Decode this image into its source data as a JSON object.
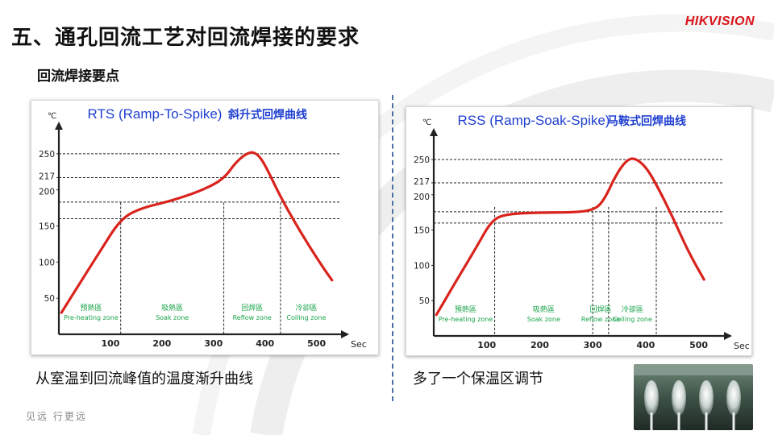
{
  "slide": {
    "title": "五、通孔回流工艺对回流焊接的要求",
    "subtitle": "回流焊接要点",
    "footer": "见远 行更远",
    "captions": {
      "left": "从室温到回流峰值的温度渐升曲线",
      "right": "多了一个保温区调节"
    }
  },
  "logo": {
    "hik": "HIK",
    "vision": "VISION"
  },
  "colors": {
    "curve": "#d9231d",
    "title_blue": "#1f3fd0",
    "zone_green": "#1aa34a",
    "brand": "#d9151b"
  },
  "chart_data": [
    {
      "type": "line",
      "title": "RTS (Ramp-To-Spike)",
      "title_cn": "斜升式回焊曲线",
      "ylabel": "℃",
      "xlabel": "Sec",
      "yticks": [
        "50",
        "100",
        "150",
        "200",
        "217",
        "250"
      ],
      "xticks": [
        "100",
        "200",
        "300",
        "400",
        "500"
      ],
      "xlim": [
        0,
        560
      ],
      "ylim": [
        0,
        290
      ],
      "reference_lines_y": [
        250,
        217,
        183,
        160
      ],
      "zone_dividers_x": [
        120,
        320,
        430
      ],
      "zones": [
        {
          "cn": "预熱區",
          "en": "Pre-heating zone"
        },
        {
          "cn": "吸熱區",
          "en": "Soak zone"
        },
        {
          "cn": "回焊區",
          "en": "Reflow zone"
        },
        {
          "cn": "冷卻區",
          "en": "Colling zone"
        }
      ],
      "series": [
        {
          "x": [
            5,
            40,
            80,
            120,
            160,
            220,
            280,
            320,
            345,
            370,
            385,
            400,
            430,
            470,
            510,
            530
          ],
          "y": [
            30,
            70,
            115,
            160,
            175,
            185,
            200,
            215,
            240,
            253,
            250,
            235,
            190,
            140,
            95,
            75
          ]
        }
      ]
    },
    {
      "type": "line",
      "title": "RSS (Ramp-Soak-Spike)",
      "title_cn": "马鞍式回焊曲线",
      "ylabel": "℃",
      "xlabel": "Sec",
      "yticks": [
        "50",
        "100",
        "150",
        "200",
        "217",
        "250"
      ],
      "xticks": [
        "100",
        "200",
        "300",
        "400",
        "500"
      ],
      "xlim": [
        0,
        560
      ],
      "ylim": [
        0,
        290
      ],
      "reference_lines_y": [
        250,
        217,
        176,
        160
      ],
      "zone_dividers_x": [
        115,
        300,
        330,
        420
      ],
      "zones": [
        {
          "cn": "預熱區",
          "en": "Pre-heating zone"
        },
        {
          "cn": "吸熱區",
          "en": "Soak zone"
        },
        {
          "cn": "回焊區",
          "en": "Reflow zone"
        },
        {
          "cn": "冷卻區",
          "en": "Colling zone"
        }
      ],
      "series": [
        {
          "x": [
            5,
            40,
            80,
            110,
            140,
            200,
            260,
            300,
            320,
            345,
            365,
            380,
            400,
            420,
            450,
            480,
            510
          ],
          "y": [
            30,
            75,
            125,
            165,
            173,
            175,
            175,
            178,
            190,
            230,
            250,
            252,
            240,
            215,
            170,
            120,
            80
          ]
        }
      ]
    }
  ]
}
